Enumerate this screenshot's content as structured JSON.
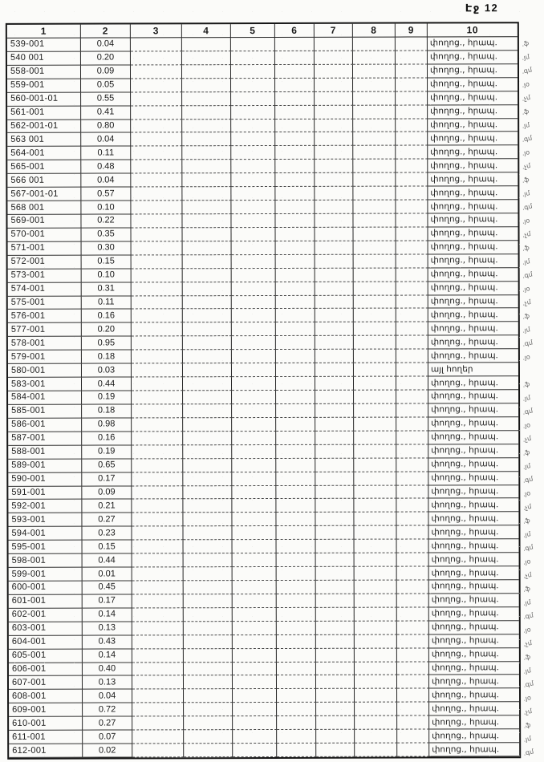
{
  "page": {
    "header": "Էջ 12"
  },
  "colors": {
    "ink": "#1a1a1a",
    "paper": "#fbfbf9",
    "margin_mark": "#4c4c4c"
  },
  "table": {
    "columns": [
      "1",
      "2",
      "3",
      "4",
      "5",
      "6",
      "7",
      "8",
      "9",
      "10"
    ],
    "rows": [
      {
        "code": "539-001",
        "value": "0.04",
        "note": "փողոց., հրապ.",
        "mark": ".ֆ"
      },
      {
        "code": "540 001",
        "value": "0.20",
        "note": "փողոց., հրապ.",
        "mark": ".յմ"
      },
      {
        "code": "558-001",
        "value": "0.09",
        "note": "փողոց., հրապ.",
        "mark": ".գմ"
      },
      {
        "code": "559-001",
        "value": "0.05",
        "note": "փողոց., հրապ.",
        "mark": ".յօ"
      },
      {
        "code": "560-001-01",
        "value": "0.55",
        "note": "փողոց., հրապ.",
        "mark": ".չմ"
      },
      {
        "code": "561-001",
        "value": "0.41",
        "note": "փողոց., հրապ.",
        "mark": ".ֆ"
      },
      {
        "code": "562-001-01",
        "value": "0.80",
        "note": "փողոց., հրապ.",
        "mark": ".յմ"
      },
      {
        "code": "563 001",
        "value": "0.04",
        "note": "փողոց., հրապ.",
        "mark": ".գմ"
      },
      {
        "code": "564-001",
        "value": "0.11",
        "note": "փողոց., հրապ.",
        "mark": ".յօ"
      },
      {
        "code": "565-001",
        "value": "0.48",
        "note": "փողոց., հրապ.",
        "mark": ".չմ"
      },
      {
        "code": "566 001",
        "value": "0.04",
        "note": "փողոց., հրապ.",
        "mark": ".ֆ"
      },
      {
        "code": "567-001-01",
        "value": "0.57",
        "note": "փողոց., հրապ.",
        "mark": ".յմ"
      },
      {
        "code": "568 001",
        "value": "0.10",
        "note": "փողոց., հրապ.",
        "mark": ".գմ"
      },
      {
        "code": "569-001",
        "value": "0.22",
        "note": "փողոց., հրապ.",
        "mark": ".յօ"
      },
      {
        "code": "570-001",
        "value": "0.35",
        "note": "փողոց., հրապ.",
        "mark": ".չմ"
      },
      {
        "code": "571-001",
        "value": "0.30",
        "note": "փողոց., հրապ.",
        "mark": ".ֆ"
      },
      {
        "code": "572-001",
        "value": "0.15",
        "note": "փողոց., հրապ.",
        "mark": ".յմ"
      },
      {
        "code": "573-001",
        "value": "0.10",
        "note": "փողոց., հրապ.",
        "mark": ".գմ"
      },
      {
        "code": "574-001",
        "value": "0.31",
        "note": "փողոց., հրապ.",
        "mark": ".յօ"
      },
      {
        "code": "575-001",
        "value": "0.11",
        "note": "փողոց., հրապ.",
        "mark": ".չմ"
      },
      {
        "code": "576-001",
        "value": "0.16",
        "note": "փողոց., հրապ.",
        "mark": ".ֆ"
      },
      {
        "code": "577-001",
        "value": "0.20",
        "note": "փողոց., հրապ.",
        "mark": ".յմ"
      },
      {
        "code": "578-001",
        "value": "0.95",
        "note": "փողոց., հրապ.",
        "mark": ".գմ"
      },
      {
        "code": "579-001",
        "value": "0.18",
        "note": "փողոց., հրապ.",
        "mark": ".յօ"
      },
      {
        "code": "580-001",
        "value": "0.03",
        "note": "այլ հողեր",
        "mark": ""
      },
      {
        "code": "583-001",
        "value": "0.44",
        "note": "փողոց., հրապ.",
        "mark": ".ֆ"
      },
      {
        "code": "584-001",
        "value": "0.19",
        "note": "փողոց., հրապ.",
        "mark": ".յմ"
      },
      {
        "code": "585-001",
        "value": "0.18",
        "note": "փողոց., հրապ.",
        "mark": ".գմ"
      },
      {
        "code": "586-001",
        "value": "0.98",
        "note": "փողոց., հրապ.",
        "mark": ".յօ"
      },
      {
        "code": "587-001",
        "value": "0.16",
        "note": "փողոց., հրապ.",
        "mark": ".չմ"
      },
      {
        "code": "588-001",
        "value": "0.19",
        "note": "փողոց., հրապ.",
        "mark": ".ֆ"
      },
      {
        "code": "589-001",
        "value": "0.65",
        "note": "փողոց., հրապ.",
        "mark": ".յմ"
      },
      {
        "code": "590-001",
        "value": "0.17",
        "note": "փողոց., հրապ.",
        "mark": ".գմ"
      },
      {
        "code": "591-001",
        "value": "0.09",
        "note": "փողոց., հրապ.",
        "mark": ".յօ"
      },
      {
        "code": "592-001",
        "value": "0.21",
        "note": "փողոց., հրապ.",
        "mark": ".չմ"
      },
      {
        "code": "593-001",
        "value": "0.27",
        "note": "փողոց., հրապ.",
        "mark": ".ֆ"
      },
      {
        "code": "594-001",
        "value": "0.23",
        "note": "փողոց., հրապ.",
        "mark": ".յմ"
      },
      {
        "code": "595-001",
        "value": "0.15",
        "note": "փողոց., հրապ.",
        "mark": ".գմ"
      },
      {
        "code": "598-001",
        "value": "0.44",
        "note": "փողոց., հրապ.",
        "mark": ".յօ"
      },
      {
        "code": "599-001",
        "value": "0.01",
        "note": "փողոց., հրապ.",
        "mark": ".չմ"
      },
      {
        "code": "600-001",
        "value": "0.45",
        "note": "փողոց., հրապ.",
        "mark": ".ֆ"
      },
      {
        "code": "601-001",
        "value": "0.17",
        "note": "փողոց., հրապ.",
        "mark": ".յմ"
      },
      {
        "code": "602-001",
        "value": "0.14",
        "note": "փողոց., հրապ.",
        "mark": ".գմ"
      },
      {
        "code": "603-001",
        "value": "0.13",
        "note": "փողոց., հրապ.",
        "mark": ".յօ"
      },
      {
        "code": "604-001",
        "value": "0.43",
        "note": "փողոց., հրապ.",
        "mark": ".չմ"
      },
      {
        "code": "605-001",
        "value": "0.14",
        "note": "փողոց., հրապ.",
        "mark": ".ֆ"
      },
      {
        "code": "606-001",
        "value": "0.40",
        "note": "փողոց., հրապ.",
        "mark": ".յմ"
      },
      {
        "code": "607-001",
        "value": "0.13",
        "note": "փողոց., հրապ.",
        "mark": ".գմ"
      },
      {
        "code": "608-001",
        "value": "0.04",
        "note": "փողոց., հրապ.",
        "mark": ".յօ"
      },
      {
        "code": "609-001",
        "value": "0.72",
        "note": "փողոց., հրապ.",
        "mark": ".չմ"
      },
      {
        "code": "610-001",
        "value": "0.27",
        "note": "փողոց., հրապ.",
        "mark": ".ֆ"
      },
      {
        "code": "611-001",
        "value": "0.07",
        "note": "փողոց., հրապ.",
        "mark": ".յմ"
      },
      {
        "code": "612-001",
        "value": "0.02",
        "note": "փողոց., հրապ.",
        "mark": ".գմ"
      }
    ]
  }
}
